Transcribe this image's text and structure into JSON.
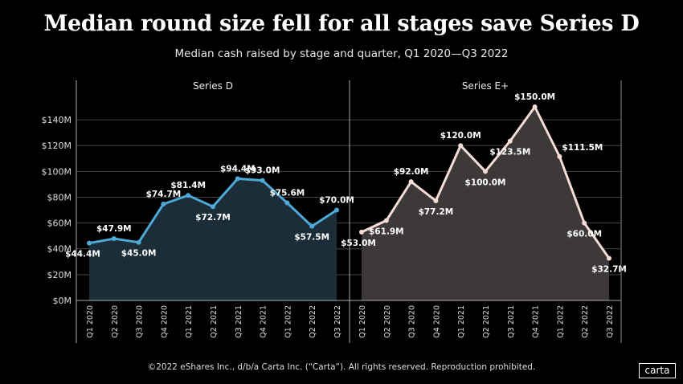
{
  "title": "Median round size fell for all stages save Series D",
  "subtitle": "Median cash raised by stage and quarter, Q1 2020—Q3 2022",
  "footer": "©2022 eShares Inc., d/b/a Carta Inc. (“Carta”). All rights reserved. Reproduction prohibited.",
  "logo": "carta",
  "chart_data": {
    "type": "area",
    "categories": [
      "Q1 2020",
      "Q2 2020",
      "Q3 2020",
      "Q4 2020",
      "Q1 2021",
      "Q2 2021",
      "Q3 2021",
      "Q4 2021",
      "Q1 2022",
      "Q2 2022",
      "Q3 2022"
    ],
    "y_ticks": [
      "$0M",
      "$20M",
      "$40M",
      "$60M",
      "$80M",
      "$100M",
      "$120M",
      "$140M"
    ],
    "y_tick_values": [
      0,
      20,
      40,
      60,
      80,
      100,
      120,
      140
    ],
    "ylim": [
      0,
      150
    ],
    "grid": true,
    "panels": [
      {
        "name": "Series D",
        "line_color": "#4ea9d6",
        "fill_color": "#1b2d38",
        "values": [
          44.4,
          47.9,
          45.0,
          74.7,
          81.4,
          72.7,
          94.4,
          93.0,
          75.6,
          57.5,
          70.0
        ],
        "labels": [
          "$44.4M",
          "$47.9M",
          "$45.0M",
          "$74.7M",
          "$81.4M",
          "$72.7M",
          "$94.4M",
          "$93.0M",
          "$75.6M",
          "$57.5M",
          "$70.0M"
        ],
        "label_pos": [
          "below",
          "above",
          "below",
          "above",
          "above",
          "below",
          "above",
          "above",
          "above",
          "below",
          "above"
        ]
      },
      {
        "name": "Series E+",
        "line_color": "#f6ddd6",
        "fill_color": "#3e3939",
        "values": [
          53.0,
          61.9,
          92.0,
          77.2,
          120.0,
          100.0,
          123.5,
          150.0,
          111.5,
          60.0,
          32.7
        ],
        "labels": [
          "$53.0M",
          "$61.9M",
          "$92.0M",
          "$77.2M",
          "$120.0M",
          "$100.0M",
          "$123.5M",
          "$150.0M",
          "$111.5M",
          "$60.0M",
          "$32.7M"
        ],
        "label_pos": [
          "below",
          "below",
          "above",
          "below",
          "above",
          "below",
          "below",
          "above",
          "right",
          "below",
          "below"
        ]
      }
    ]
  }
}
